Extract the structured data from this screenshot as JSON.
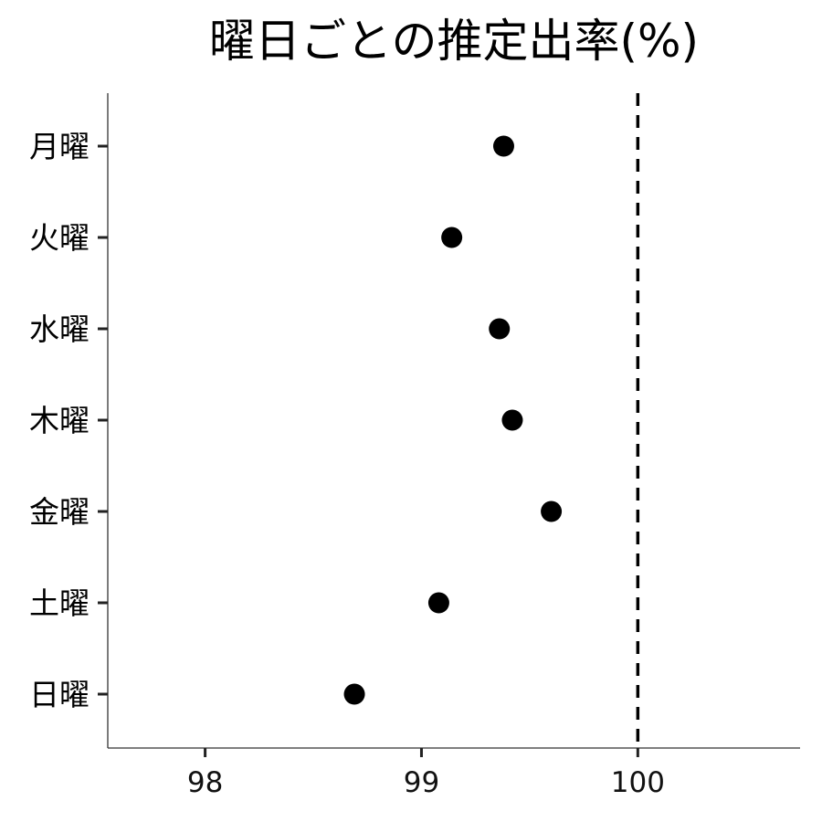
{
  "chart_data": {
    "type": "scatter",
    "title": "曜日ごとの推定出率(%)",
    "xlabel": "",
    "ylabel": "",
    "xlim": [
      97.55,
      100.75
    ],
    "xticks": [
      98,
      99,
      100
    ],
    "xtick_labels": [
      "98",
      "99",
      "100"
    ],
    "categories": [
      "月曜",
      "火曜",
      "水曜",
      "木曜",
      "金曜",
      "土曜",
      "日曜"
    ],
    "values": [
      99.38,
      99.14,
      99.36,
      99.42,
      99.6,
      99.08,
      98.69
    ],
    "reference_line": {
      "x": 100,
      "style": "dashed"
    },
    "grid": false,
    "legend": "none",
    "colors": {
      "point": "#000000",
      "axis": "#333333",
      "reference": "#000000"
    }
  }
}
